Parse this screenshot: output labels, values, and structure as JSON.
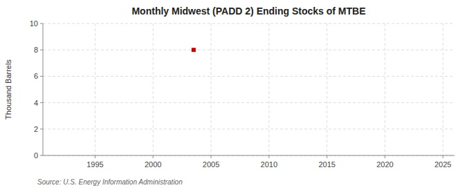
{
  "chart_data": {
    "type": "scatter",
    "title": "Monthly Midwest (PADD 2) Ending Stocks of MTBE",
    "ylabel": "Thousand Barrels",
    "annotations": [
      "Source: U.S. Energy Information Administration"
    ],
    "x": [
      2003.5
    ],
    "values": [
      8
    ],
    "color": "#cc0000",
    "marker": "square",
    "xlim": [
      1990.5,
      2026
    ],
    "ylim": [
      0,
      10
    ],
    "xticks": [
      1995,
      2000,
      2005,
      2010,
      2015,
      2020,
      2025
    ],
    "yticks": [
      0,
      2,
      4,
      6,
      8,
      10
    ],
    "grid": true
  }
}
